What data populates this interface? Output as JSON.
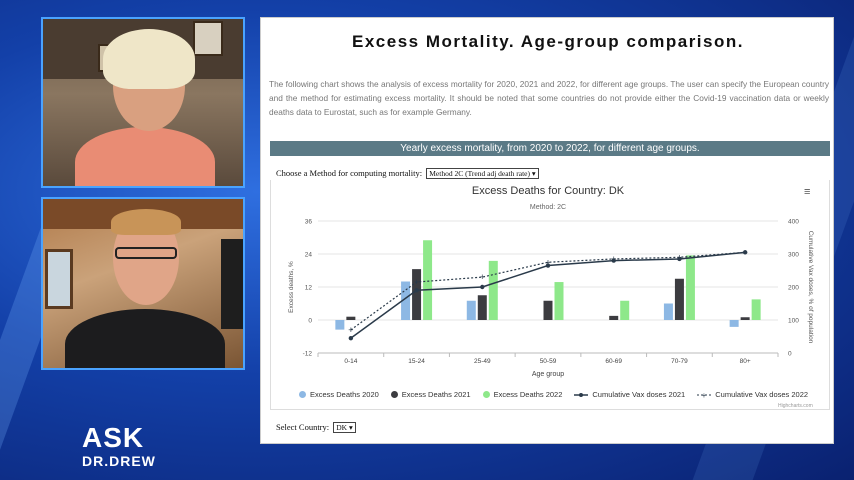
{
  "branding": {
    "ask": "ASK",
    "drew": "DR.DREW"
  },
  "page": {
    "title": "Excess Mortality. Age-group comparison.",
    "intro": "The following chart shows the analysis of excess mortality for 2020, 2021 and 2022, for different age groups. The user can specify the European country and the method for estimating excess mortality. It should be noted that some countries do not provide either the Covid-19 vaccination data or weekly deaths data to Eurostat, such as for example Germany.",
    "banner": "Yearly excess mortality, from 2020 to 2022, for different age groups.",
    "method_label": "Choose a Method for computing mortality:",
    "method_value": "Method 2C (Trend adj death rate)",
    "country_label": "Select Country:",
    "country_value": "DK",
    "credits": "Highcharts.com"
  },
  "chart_data": {
    "type": "bar",
    "title": "Excess Deaths for Country: DK",
    "subtitle": "Method: 2C",
    "xlabel": "Age group",
    "ylabel": "Excess deaths, %",
    "y2label": "Cumulative Vax doses, % of population",
    "categories": [
      "0-14",
      "15-24",
      "25-49",
      "50-59",
      "60-69",
      "70-79",
      "80+"
    ],
    "ylim": [
      -12,
      36
    ],
    "yticks": [
      -12,
      0,
      12,
      24,
      36
    ],
    "y2lim": [
      0,
      400
    ],
    "y2ticks": [
      0,
      100,
      200,
      300,
      400
    ],
    "series": [
      {
        "name": "Excess Deaths 2020",
        "kind": "bar",
        "axis": "left",
        "color": "#8db8e4",
        "values": [
          -3.5,
          14,
          7,
          0,
          0,
          6,
          -2.5
        ]
      },
      {
        "name": "Excess Deaths 2021",
        "kind": "bar",
        "axis": "left",
        "color": "#3c3c40",
        "values": [
          1.2,
          18.5,
          9,
          7,
          1.5,
          15,
          1
        ]
      },
      {
        "name": "Excess Deaths 2022",
        "kind": "bar",
        "axis": "left",
        "color": "#8ee88a",
        "values": [
          0,
          29,
          21.5,
          13.8,
          7,
          23.5,
          7.5
        ]
      },
      {
        "name": "Cumulative Vax doses 2021",
        "kind": "line",
        "axis": "right",
        "color": "#2a3a4a",
        "dash": false,
        "values": [
          45,
          190,
          200,
          265,
          280,
          285,
          305
        ]
      },
      {
        "name": "Cumulative Vax doses 2022",
        "kind": "line",
        "axis": "right",
        "color": "#2a3a4a",
        "dash": true,
        "values": [
          70,
          215,
          230,
          275,
          285,
          290,
          305
        ]
      }
    ]
  }
}
